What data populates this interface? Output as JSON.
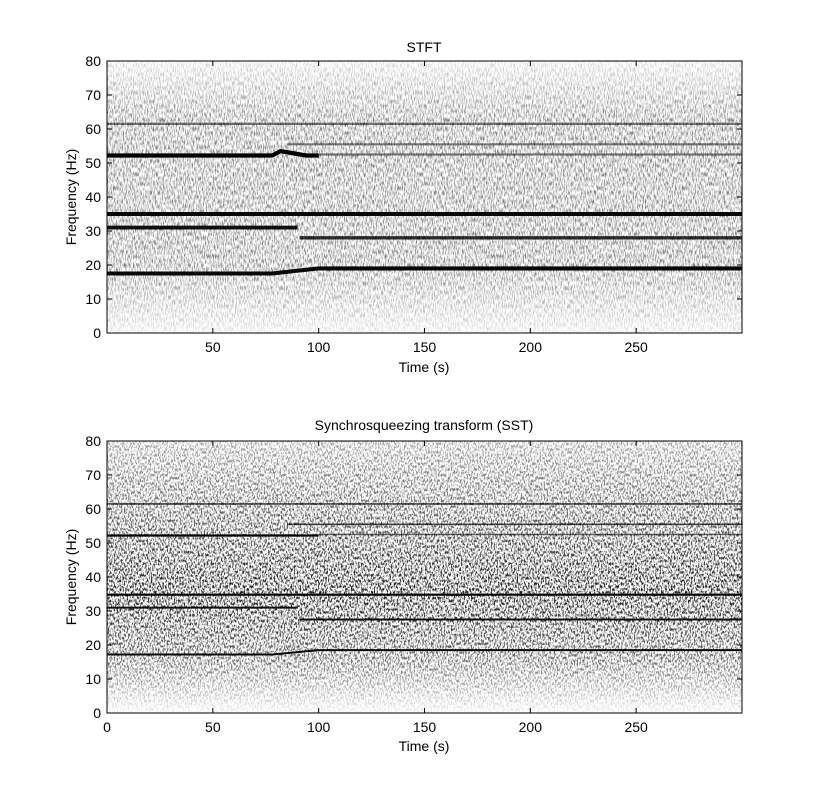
{
  "chart_data": [
    {
      "type": "heatmap",
      "title": "STFT",
      "xlabel": "Time (s)",
      "ylabel": "Frequency (Hz)",
      "xlim": [
        0,
        300
      ],
      "ylim": [
        0,
        80
      ],
      "xticks": [
        50,
        100,
        150,
        200,
        250
      ],
      "yticks": [
        0,
        10,
        20,
        30,
        40,
        50,
        60,
        70,
        80
      ],
      "colormap": "gray inverted (white = low, black = high)",
      "grid": false,
      "ridges": [
        {
          "t": [
            0,
            300
          ],
          "f": [
            61.5,
            61.5
          ],
          "intensity": 0.35
        },
        {
          "t": [
            0,
            78,
            82,
            94,
            100
          ],
          "f": [
            52.2,
            52.2,
            53.5,
            52.2,
            52.2
          ],
          "intensity": 0.95
        },
        {
          "t": [
            85,
            300
          ],
          "f": [
            55.5,
            55.5
          ],
          "intensity": 0.3
        },
        {
          "t": [
            100,
            300
          ],
          "f": [
            52.5,
            52.5
          ],
          "intensity": 0.3
        },
        {
          "t": [
            0,
            300
          ],
          "f": [
            35,
            35
          ],
          "intensity": 0.9
        },
        {
          "t": [
            0,
            90
          ],
          "f": [
            31,
            31
          ],
          "intensity": 0.85
        },
        {
          "t": [
            91,
            300
          ],
          "f": [
            28,
            28
          ],
          "intensity": 0.7
        },
        {
          "t": [
            0,
            78,
            100,
            300
          ],
          "f": [
            17.5,
            17.5,
            19,
            19
          ],
          "intensity": 0.9
        }
      ]
    },
    {
      "type": "heatmap",
      "title": "Synchrosqueezing transform (SST)",
      "xlabel": "Time (s)",
      "ylabel": "Frequency (Hz)",
      "xlim": [
        0,
        300
      ],
      "ylim": [
        0,
        80
      ],
      "xticks": [
        0,
        50,
        100,
        150,
        200,
        250
      ],
      "yticks": [
        0,
        10,
        20,
        30,
        40,
        50,
        60,
        70,
        80
      ],
      "colormap": "gray inverted (white = low, black = high)",
      "grid": false,
      "ridges": [
        {
          "t": [
            0,
            300
          ],
          "f": [
            61.5,
            61.5
          ],
          "intensity": 0.6
        },
        {
          "t": [
            0,
            80,
            100
          ],
          "f": [
            52.2,
            52.2,
            52.2
          ],
          "intensity": 0.95
        },
        {
          "t": [
            85,
            300
          ],
          "f": [
            55.5,
            55.5
          ],
          "intensity": 0.6
        },
        {
          "t": [
            100,
            300
          ],
          "f": [
            52.5,
            52.5
          ],
          "intensity": 0.45
        },
        {
          "t": [
            0,
            300
          ],
          "f": [
            34.8,
            34.8
          ],
          "intensity": 0.95
        },
        {
          "t": [
            0,
            90
          ],
          "f": [
            31,
            31
          ],
          "intensity": 0.85
        },
        {
          "t": [
            91,
            300
          ],
          "f": [
            27.5,
            27.5
          ],
          "intensity": 0.85
        },
        {
          "t": [
            0,
            78,
            100,
            300
          ],
          "f": [
            17.2,
            17.2,
            18.5,
            18.5
          ],
          "intensity": 0.9
        }
      ]
    }
  ]
}
